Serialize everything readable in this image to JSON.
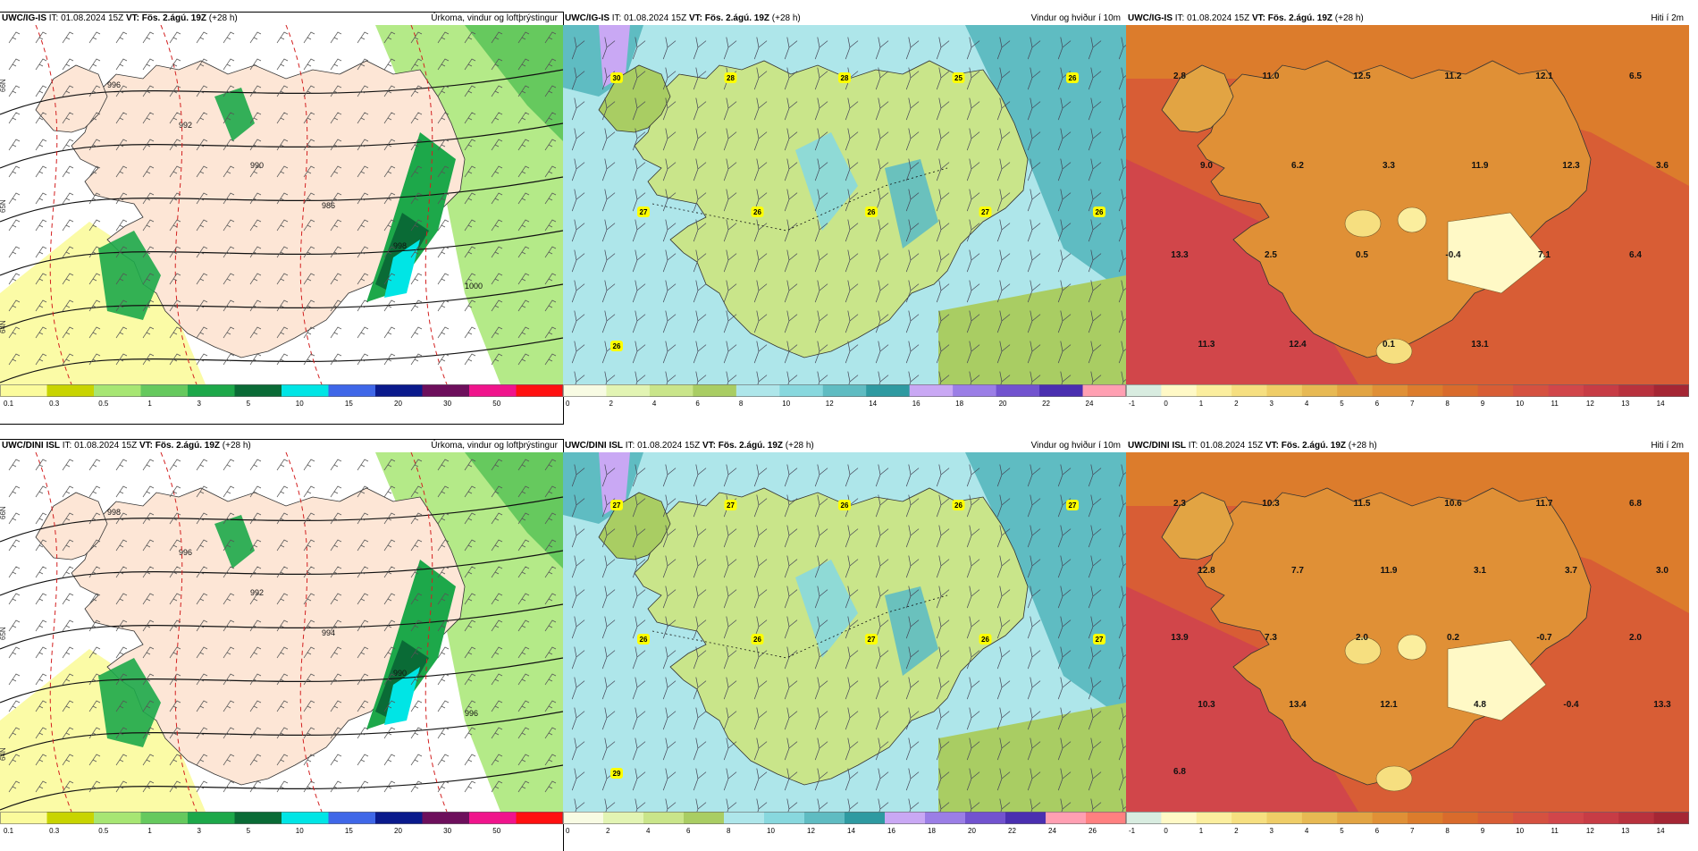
{
  "panels": [
    {
      "model": "UWC/IG-IS",
      "it": "01.08.2024 15Z",
      "vt": "Fös. 2.ágú. 19Z",
      "lead": "(+28 h)",
      "title": "Úrkoma, vindur og loftþrýstingur",
      "kind": "precip",
      "isobars": [
        "996",
        "992",
        "990",
        "986",
        "998",
        "1000"
      ],
      "lat_labels": [
        "66N",
        "65N",
        "64N"
      ],
      "labels": [],
      "colorbar": {
        "ticks": [
          "0.1",
          "0.3",
          "0.5",
          "1",
          "3",
          "5",
          "10",
          "15",
          "20",
          "30",
          "50"
        ],
        "colors": [
          "#fbfb9c",
          "#c8d400",
          "#a7e673",
          "#66c95e",
          "#1da84a",
          "#0a6b36",
          "#00e5e5",
          "#3f67e8",
          "#0a1a8c",
          "#6d0f5c",
          "#f0148c",
          "#ff1010"
        ]
      }
    },
    {
      "model": "UWC/IG-IS",
      "it": "01.08.2024 15Z",
      "vt": "Fös. 2.ágú. 19Z",
      "lead": "(+28 h)",
      "title": "Vindur og hviður í 10m",
      "kind": "wind",
      "labels": [
        "30",
        "28",
        "28",
        "25",
        "26",
        "27",
        "26",
        "26",
        "27",
        "26",
        "26"
      ],
      "colorbar": {
        "ticks": [
          "0",
          "2",
          "4",
          "6",
          "8",
          "10",
          "12",
          "14",
          "16",
          "18",
          "20",
          "22",
          "24"
        ],
        "colors": [
          "#f8fbe3",
          "#e2f4b3",
          "#c9e58a",
          "#a9cd63",
          "#aee6ea",
          "#88d8de",
          "#5fbcc2",
          "#2e9aa1",
          "#c9a8f4",
          "#9b7ee6",
          "#7253cf",
          "#4a2fb0",
          "#ff9fb2"
        ]
      }
    },
    {
      "model": "UWC/IG-IS",
      "it": "01.08.2024 15Z",
      "vt": "Fös. 2.ágú. 19Z",
      "lead": "(+28 h)",
      "title": "Hiti í 2m",
      "kind": "temp",
      "labels": [
        "2.8",
        "11.0",
        "12.5",
        "11.2",
        "12.1",
        "6.5",
        "9.0",
        "6.2",
        "3.3",
        "11.9",
        "12.3",
        "3.6",
        "13.3",
        "2.5",
        "0.5",
        "-0.4",
        "7.1",
        "6.4",
        "11.3",
        "12.4",
        "0.1",
        "13.1"
      ],
      "colorbar": {
        "ticks": [
          "-1",
          "0",
          "1",
          "2",
          "3",
          "4",
          "5",
          "6",
          "7",
          "8",
          "9",
          "10",
          "11",
          "12",
          "13",
          "14"
        ],
        "colors": [
          "#d8ece0",
          "#fff9c6",
          "#fbee9e",
          "#f6df80",
          "#efcd67",
          "#e7b953",
          "#e2a443",
          "#e09036",
          "#dc7c2c",
          "#d96b2c",
          "#d85d35",
          "#d55140",
          "#d1464a",
          "#c73c45",
          "#b8313d",
          "#a52634"
        ]
      }
    },
    {
      "model": "UWC/DINI ISL",
      "it": "01.08.2024 15Z",
      "vt": "Fös. 2.ágú. 19Z",
      "lead": "(+28 h)",
      "title": "Úrkoma, vindur og loftþrýstingur",
      "kind": "precip",
      "isobars": [
        "998",
        "996",
        "992",
        "994",
        "990",
        "996"
      ],
      "lat_labels": [
        "66N",
        "65N",
        "64N"
      ],
      "labels": [],
      "colorbar": {
        "ticks": [
          "0.1",
          "0.3",
          "0.5",
          "1",
          "3",
          "5",
          "10",
          "15",
          "20",
          "30",
          "50"
        ],
        "colors": [
          "#fbfb9c",
          "#c8d400",
          "#a7e673",
          "#66c95e",
          "#1da84a",
          "#0a6b36",
          "#00e5e5",
          "#3f67e8",
          "#0a1a8c",
          "#6d0f5c",
          "#f0148c",
          "#ff1010"
        ]
      }
    },
    {
      "model": "UWC/DINI ISL",
      "it": "01.08.2024 15Z",
      "vt": "Fös. 2.ágú. 19Z",
      "lead": "(+28 h)",
      "title": "Vindur og hviður í 10m",
      "kind": "wind",
      "labels": [
        "27",
        "27",
        "26",
        "26",
        "27",
        "26",
        "26",
        "27",
        "26",
        "27",
        "29"
      ],
      "colorbar": {
        "ticks": [
          "0",
          "2",
          "4",
          "6",
          "8",
          "10",
          "12",
          "14",
          "16",
          "18",
          "20",
          "22",
          "24",
          "26"
        ],
        "colors": [
          "#f8fbe3",
          "#e2f4b3",
          "#c9e58a",
          "#a9cd63",
          "#aee6ea",
          "#88d8de",
          "#5fbcc2",
          "#2e9aa1",
          "#c9a8f4",
          "#9b7ee6",
          "#7253cf",
          "#4a2fb0",
          "#ff9fb2",
          "#ff8080"
        ]
      }
    },
    {
      "model": "UWC/DINI ISL",
      "it": "01.08.2024 15Z",
      "vt": "Fös. 2.ágú. 19Z",
      "lead": "(+28 h)",
      "title": "Hiti í 2m",
      "kind": "temp",
      "labels": [
        "2.3",
        "10.3",
        "11.5",
        "10.6",
        "11.7",
        "6.8",
        "12.8",
        "7.7",
        "11.9",
        "3.1",
        "3.7",
        "3.0",
        "13.9",
        "7.3",
        "2.0",
        "0.2",
        "-0.7",
        "2.0",
        "10.3",
        "13.4",
        "12.1",
        "4.8",
        "-0.4",
        "13.3",
        "6.8"
      ],
      "colorbar": {
        "ticks": [
          "-1",
          "0",
          "1",
          "2",
          "3",
          "4",
          "5",
          "6",
          "7",
          "8",
          "9",
          "10",
          "11",
          "12",
          "13",
          "14"
        ],
        "colors": [
          "#d8ece0",
          "#fff9c6",
          "#fbee9e",
          "#f6df80",
          "#efcd67",
          "#e7b953",
          "#e2a443",
          "#e09036",
          "#dc7c2c",
          "#d96b2c",
          "#d85d35",
          "#d55140",
          "#d1464a",
          "#c73c45",
          "#b8313d",
          "#a52634"
        ]
      }
    }
  ],
  "it_prefix": "IT:",
  "vt_prefix": "VT:"
}
